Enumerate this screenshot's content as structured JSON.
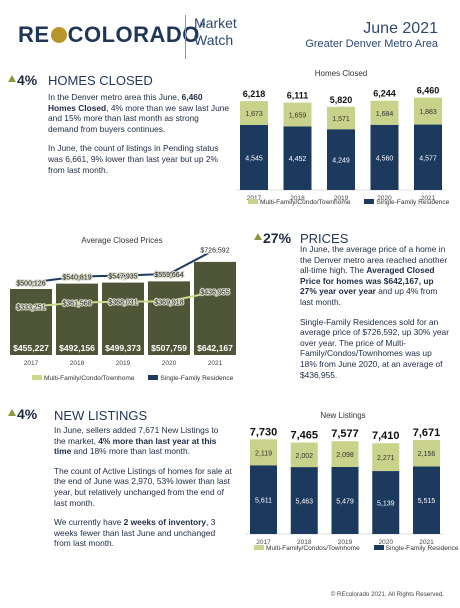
{
  "header": {
    "logo_pre": "RE",
    "logo_post": "COLORADO",
    "logo_reg": "®",
    "market": "Market",
    "watch": "Watch",
    "month": "June 2021",
    "area": "Greater Denver Metro Area"
  },
  "homes_closed": {
    "badge": "4%",
    "title": "HOMES CLOSED",
    "p1_a": "In the Denver metro area this June, ",
    "p1_b": "6,460 Homes Closed",
    "p1_c": ", 4% more than we saw last June and 15% more than last month as strong demand from buyers continues.",
    "p2": "In June, the count of listings in Pending status was 6,661, 9% lower than last year but up 2% from last month."
  },
  "prices": {
    "badge": "27%",
    "title": "PRICES",
    "p1_a": "In June, the average price of a home in the Denver metro area reached another all-time high. The ",
    "p1_b": "Averaged Closed Price for homes was $642,167, up 27% year over year",
    "p1_c": " and up 4% from last month.",
    "p2": "Single-Family Residences sold for an average price of $726,592, up 30% year over year. The price of Multi-Family/Condos/Townhomes was up 18% from June 2020, at an average of $436,955."
  },
  "new_listings": {
    "badge": "4%",
    "title": "NEW LISTINGS",
    "p1_a": "In June, sellers added 7,671 New Listings to the market, ",
    "p1_b": "4% more than last year at this time",
    "p1_c": " and 18% more than last month.",
    "p2": "The count of Active Listings of homes for sale at the end of June was 2,970, 53% lower than last year, but relatively unchanged from the end of last month.",
    "p3_a": "We currently have ",
    "p3_b": "2 weeks of inventory",
    "p3_c": ", 3 weeks fewer than last June and unchanged from last month."
  },
  "legend": {
    "multi": "Multi-Family/Condo/Townhome",
    "single": "Single-Family Residence",
    "multi_nl": "Multi-Family/Condos/Townhome"
  },
  "colors": {
    "navy": "#1c3a5e",
    "olive_light": "#c9d28a",
    "olive_dark": "#4f5537",
    "line_dark": "#1c3a5e",
    "line_light": "#c9d98a"
  },
  "footer": "© REcolorado 2021. All Rights Reserved.",
  "chart_data": [
    {
      "type": "bar",
      "title": "Homes Closed",
      "categories": [
        "2017",
        "2018",
        "2019",
        "2020",
        "2021"
      ],
      "series": [
        {
          "name": "Single-Family Residence",
          "values": [
            4545,
            4452,
            4249,
            4560,
            4577
          ],
          "labels": [
            "4,545",
            "4,452",
            "4,249",
            "4,560",
            "4,577"
          ]
        },
        {
          "name": "Multi-Family/Condo/Townhome",
          "values": [
            1673,
            1659,
            1571,
            1684,
            1883
          ],
          "labels": [
            "1,673",
            "1,659",
            "1,571",
            "1,684",
            "1,883"
          ]
        }
      ],
      "totals": [
        "6,218",
        "6,111",
        "5,820",
        "6,244",
        "6,460"
      ],
      "total_values": [
        6218,
        6111,
        5820,
        6244,
        6460
      ]
    },
    {
      "type": "bar",
      "title": "Average Closed Prices",
      "categories": [
        "2017",
        "2018",
        "2019",
        "2020",
        "2021"
      ],
      "values": [
        455227,
        492156,
        499373,
        507759,
        642167
      ],
      "labels": [
        "$455,227",
        "$492,156",
        "$499,373",
        "$507,759",
        "$642,167"
      ],
      "lines": [
        {
          "name": "Single-Family Residence",
          "values": [
            500126,
            540819,
            547935,
            559664,
            726592
          ],
          "labels": [
            "$500,126",
            "$540,819",
            "$547,935",
            "$559,664",
            "$726,592"
          ]
        },
        {
          "name": "Multi-Family/Condo/Townhome",
          "values": [
            333251,
            361568,
            368031,
            369918,
            436955
          ],
          "labels": [
            "$333,251",
            "$361,568",
            "$368,031",
            "$369,918",
            "$436,955"
          ]
        }
      ]
    },
    {
      "type": "bar",
      "title": "New Listings",
      "categories": [
        "2017",
        "2018",
        "2019",
        "2020",
        "2021"
      ],
      "series": [
        {
          "name": "Single-Family Residence",
          "values": [
            5611,
            5463,
            5479,
            5139,
            5515
          ],
          "labels": [
            "5,611",
            "5,463",
            "5,479",
            "5,139",
            "5,515"
          ]
        },
        {
          "name": "Multi-Family/Condos/Townhome",
          "values": [
            2119,
            2002,
            2098,
            2271,
            2156
          ],
          "labels": [
            "2,119",
            "2,002",
            "2,098",
            "2,271",
            "2,156"
          ]
        }
      ],
      "totals": [
        "7,730",
        "7,465",
        "7,577",
        "7,410",
        "7,671"
      ],
      "total_values": [
        7730,
        7465,
        7577,
        7410,
        7671
      ]
    }
  ]
}
